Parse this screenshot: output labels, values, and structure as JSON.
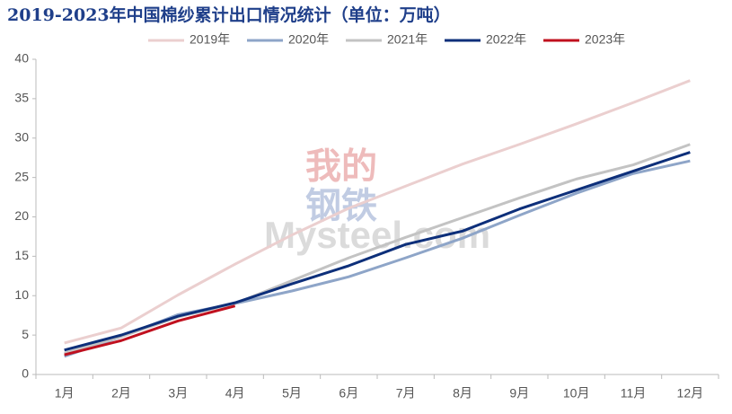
{
  "chart_data": {
    "type": "line",
    "title": "2019-2023年中国棉纱累计出口情况统计（单位：万吨）",
    "watermark": [
      "我的",
      "钢铁",
      "Mysteel.com"
    ],
    "categories": [
      "1月",
      "2月",
      "3月",
      "4月",
      "5月",
      "6月",
      "7月",
      "8月",
      "9月",
      "10月",
      "11月",
      "12月"
    ],
    "series": [
      {
        "name": "2019年",
        "color": "#ebcfcf",
        "values": [
          4.0,
          5.9,
          10.1,
          14.0,
          17.7,
          21.1,
          23.9,
          26.7,
          29.2,
          31.8,
          34.5,
          37.3
        ]
      },
      {
        "name": "2020年",
        "color": "#8ea5c8",
        "values": [
          2.3,
          4.8,
          7.6,
          9.0,
          10.6,
          12.4,
          14.8,
          17.3,
          20.2,
          23.0,
          25.5,
          27.1
        ]
      },
      {
        "name": "2021年",
        "color": "#c3c3c3",
        "values": [
          2.7,
          4.8,
          7.3,
          9.0,
          11.9,
          14.8,
          17.4,
          19.9,
          22.4,
          24.8,
          26.6,
          29.2
        ]
      },
      {
        "name": "2022年",
        "color": "#0d2f7a",
        "values": [
          3.1,
          5.0,
          7.4,
          9.1,
          11.5,
          13.8,
          16.5,
          18.2,
          21.0,
          23.4,
          25.8,
          28.2
        ]
      },
      {
        "name": "2023年",
        "color": "#c0101e",
        "values": [
          2.5,
          4.3,
          6.8,
          8.7,
          null,
          null,
          null,
          null,
          null,
          null,
          null,
          null
        ]
      }
    ],
    "ylim": [
      0,
      40
    ],
    "yticks": [
      0,
      5,
      10,
      15,
      20,
      25,
      30,
      35,
      40
    ],
    "grid": false,
    "legend": "top"
  }
}
